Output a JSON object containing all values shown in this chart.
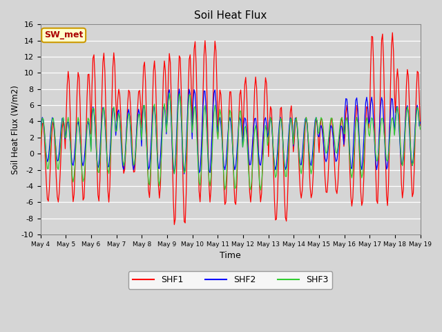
{
  "title": "Soil Heat Flux",
  "xlabel": "Time",
  "ylabel": "Soil Heat Flux (W/m2)",
  "ylim": [
    -10,
    16
  ],
  "annotation_text": "SW_met",
  "annotation_bg": "#ffffcc",
  "annotation_border": "#cc9900",
  "colors": [
    "red",
    "blue",
    "green"
  ],
  "legend_entries": [
    "SHF1",
    "SHF2",
    "SHF3"
  ],
  "tick_labels": [
    "May 4",
    "May 5",
    "May 6",
    "May 7",
    "May 8",
    "May 9",
    "May 10",
    "May 11",
    "May 12",
    "May 13",
    "May 14",
    "May 15",
    "May 16",
    "May 17",
    "May 18",
    "May 19"
  ],
  "n_days": 16,
  "samples_per_day": 24,
  "shf1_peaks": [
    4.0,
    10.2,
    12.5,
    8.0,
    11.5,
    12.5,
    14.0,
    8.0,
    9.5,
    6.0,
    4.5,
    4.5,
    6.0,
    15.0,
    10.5,
    10.0
  ],
  "shf1_troughs": [
    -6.0,
    -6.0,
    -6.0,
    -2.5,
    -5.5,
    -9.0,
    -6.0,
    -6.5,
    -6.0,
    -8.5,
    -5.5,
    -5.0,
    -6.5,
    -6.5,
    -5.5,
    -3.0
  ],
  "shf2_peaks": [
    4.5,
    4.0,
    5.8,
    5.5,
    6.0,
    8.0,
    8.0,
    4.5,
    4.5,
    4.5,
    4.5,
    3.5,
    7.0,
    7.0,
    6.0,
    6.0
  ],
  "shf2_troughs": [
    -1.0,
    -1.5,
    -1.8,
    -2.0,
    -2.0,
    -2.5,
    -2.5,
    -2.0,
    -1.5,
    -2.0,
    -1.5,
    -1.0,
    -2.0,
    -2.0,
    -1.5,
    0.0
  ],
  "shf3_peaks": [
    4.5,
    4.5,
    5.8,
    5.0,
    6.2,
    7.5,
    6.0,
    5.5,
    3.5,
    4.5,
    4.5,
    4.5,
    4.5,
    4.5,
    5.8,
    5.5
  ],
  "shf3_troughs": [
    -2.0,
    -3.5,
    -2.5,
    -1.5,
    -4.0,
    -2.5,
    -4.0,
    -4.5,
    -4.5,
    -3.0,
    -2.5,
    0.0,
    -3.0,
    -1.0,
    -1.5,
    0.0
  ]
}
